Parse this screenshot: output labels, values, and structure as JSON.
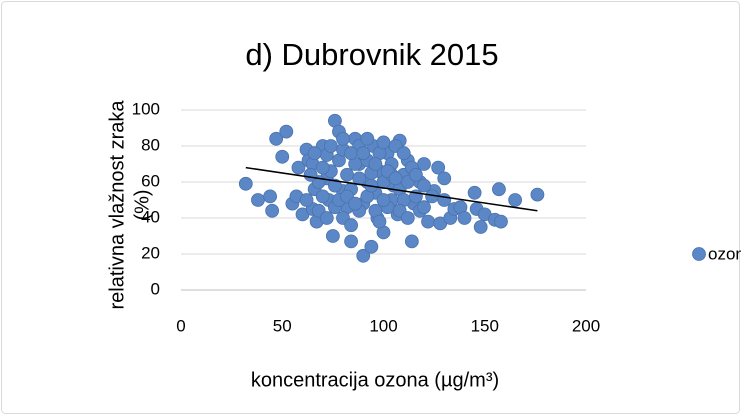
{
  "chart_data": {
    "type": "scatter",
    "title": "d) Dubrovnik 2015",
    "xlabel": "koncentracija ozona (µg/m³)",
    "ylabel": [
      "relativna vlažnost zraka",
      "(%)"
    ],
    "xlim": [
      0,
      200
    ],
    "xticks": [
      0,
      50,
      100,
      150,
      200
    ],
    "ylim": [
      0,
      100
    ],
    "yticks": [
      0,
      20,
      40,
      60,
      80,
      100
    ],
    "grid": true,
    "legend": "right",
    "x": [
      32,
      38,
      44,
      45,
      47,
      52,
      50,
      55,
      57,
      58,
      60,
      62,
      63,
      65,
      66,
      67,
      70,
      72,
      73,
      75,
      76,
      78,
      80,
      82,
      84,
      86,
      88,
      90,
      92,
      94,
      95,
      97,
      98,
      100,
      102,
      104,
      105,
      107,
      108,
      110,
      112,
      114,
      115,
      118,
      120,
      122,
      125,
      127,
      128,
      130,
      133,
      135,
      145,
      146,
      148,
      150,
      155,
      157,
      158,
      165,
      176,
      65,
      68,
      70,
      72,
      74,
      76,
      78,
      80,
      82,
      84,
      86,
      88,
      90,
      92,
      94,
      96,
      98,
      100,
      102,
      104,
      106,
      108,
      110,
      112,
      114,
      116,
      118,
      120,
      68,
      72,
      76,
      80,
      84,
      88,
      92,
      96,
      100,
      104,
      108,
      112,
      80,
      84,
      88,
      92,
      96,
      100,
      62,
      64,
      66,
      70,
      74,
      78,
      82,
      86,
      90,
      94,
      98,
      102,
      106,
      110,
      116,
      120,
      124,
      130,
      138,
      140
    ],
    "series": [
      {
        "name": "ozon",
        "color": "#5b87c7",
        "values": [
          59,
          50,
          52,
          44,
          84,
          88,
          74,
          48,
          52,
          68,
          42,
          78,
          72,
          45,
          56,
          38,
          80,
          62,
          50,
          30,
          94,
          88,
          55,
          46,
          27,
          84,
          70,
          19,
          60,
          24,
          80,
          40,
          66,
          32,
          76,
          50,
          58,
          42,
          83,
          64,
          72,
          27,
          48,
          60,
          70,
          38,
          55,
          68,
          37,
          62,
          40,
          45,
          54,
          45,
          35,
          42,
          39,
          56,
          38,
          50,
          53,
          70,
          60,
          52,
          75,
          66,
          58,
          72,
          78,
          64,
          56,
          70,
          80,
          48,
          72,
          65,
          54,
          76,
          60,
          46,
          70,
          80,
          56,
          50,
          60,
          68,
          52,
          44,
          58,
          44,
          40,
          46,
          40,
          36,
          44,
          52,
          70,
          82,
          64,
          44,
          40,
          84,
          76,
          62,
          84,
          44,
          50,
          50,
          64,
          76,
          68,
          80,
          50,
          52,
          48,
          76,
          58,
          38,
          66,
          62,
          76,
          64,
          46,
          52,
          50,
          46,
          40
        ]
      }
    ],
    "trendline": {
      "x": [
        32,
        176
      ],
      "values": [
        68,
        44
      ]
    }
  }
}
